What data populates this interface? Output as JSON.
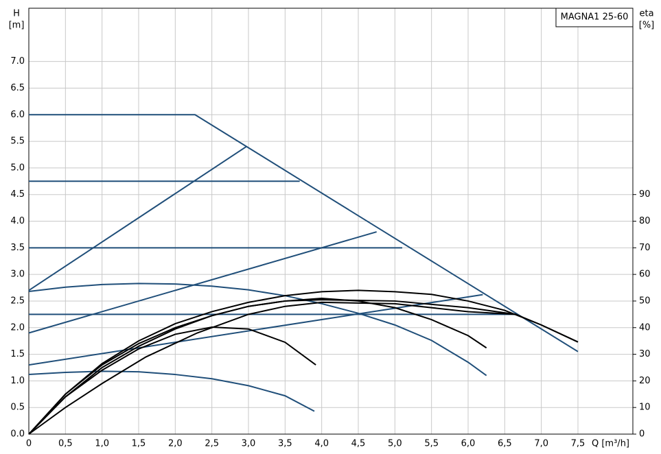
{
  "chart_data": {
    "type": "line",
    "title": "MAGNA1 25-60",
    "y_label": "H",
    "y_unit": "[m]",
    "y2_label": "eta",
    "y2_unit": "[%]",
    "x_label": "Q [m³/h]",
    "xlim": [
      0,
      8.25
    ],
    "ylim": [
      0,
      8
    ],
    "y2lim": [
      0,
      160
    ],
    "grid": true,
    "xticks": [
      0,
      {
        "value": 0.5,
        "label": "0,5"
      },
      {
        "value": 1,
        "label": "1,0"
      },
      {
        "value": 1.5,
        "label": "1,5"
      },
      {
        "value": 2,
        "label": "2,0"
      },
      {
        "value": 2.5,
        "label": "2,5"
      },
      {
        "value": 3,
        "label": "3,0"
      },
      {
        "value": 3.5,
        "label": "3,5"
      },
      {
        "value": 4,
        "label": "4,0"
      },
      {
        "value": 4.5,
        "label": "4,5"
      },
      {
        "value": 5,
        "label": "5,0"
      },
      {
        "value": 5.5,
        "label": "5,5"
      },
      {
        "value": 6,
        "label": "6,0"
      },
      {
        "value": 6.5,
        "label": "6,5"
      },
      {
        "value": 7,
        "label": "7,0"
      },
      {
        "value": 7.5,
        "label": "7,5"
      }
    ],
    "yticks": [
      {
        "value": 0,
        "label": "0.0"
      },
      0.5,
      {
        "value": 1,
        "label": "1.0"
      },
      1.5,
      {
        "value": 2,
        "label": "2.0"
      },
      2.5,
      {
        "value": 3,
        "label": "3.0"
      },
      3.5,
      {
        "value": 4,
        "label": "4.0"
      },
      4.5,
      {
        "value": 5,
        "label": "5.0"
      },
      5.5,
      {
        "value": 6,
        "label": "6.0"
      },
      6.5,
      {
        "value": 7,
        "label": "7.0"
      }
    ],
    "y2ticks": [
      0,
      10,
      20,
      30,
      40,
      50,
      60,
      70,
      80,
      90
    ],
    "series": [
      {
        "color": "#1f4e79",
        "x": [
          0,
          2.27,
          7.5
        ],
        "values": [
          6.0,
          6.0,
          1.55
        ]
      },
      {
        "color": "#1f4e79",
        "x": [
          0,
          3.7
        ],
        "values": [
          4.75,
          4.75
        ]
      },
      {
        "color": "#1f4e79",
        "x": [
          0,
          5.1
        ],
        "values": [
          3.5,
          3.5
        ]
      },
      {
        "color": "#1f4e79",
        "x": [
          0,
          6.65
        ],
        "values": [
          2.25,
          2.25
        ]
      },
      {
        "color": "#1f4e79",
        "x": [
          0,
          2.97
        ],
        "values": [
          2.7,
          5.4
        ]
      },
      {
        "color": "#1f4e79",
        "x": [
          0,
          4.75
        ],
        "values": [
          1.9,
          3.8
        ]
      },
      {
        "color": "#1f4e79",
        "x": [
          0,
          6.2
        ],
        "values": [
          1.3,
          2.62
        ]
      },
      {
        "color": "#1f4e79",
        "x": [
          0,
          0.5,
          1,
          1.5,
          2,
          2.5,
          3,
          3.5,
          4,
          4.5,
          5,
          5.5,
          6,
          6.25
        ],
        "values": [
          2.68,
          2.76,
          2.81,
          2.83,
          2.82,
          2.78,
          2.71,
          2.6,
          2.45,
          2.27,
          2.05,
          1.76,
          1.35,
          1.1
        ]
      },
      {
        "color": "#1f4e79",
        "x": [
          0,
          0.5,
          1,
          1.5,
          2,
          2.5,
          3,
          3.5,
          3.9
        ],
        "values": [
          1.12,
          1.16,
          1.18,
          1.17,
          1.12,
          1.04,
          0.91,
          0.72,
          0.43
        ]
      },
      {
        "color": "#000000",
        "axis": "y2",
        "x": [
          0,
          0.5,
          1,
          1.5,
          2,
          2.5,
          3,
          3.5,
          3.92
        ],
        "values": [
          0,
          14,
          24,
          32,
          37.5,
          40.2,
          39.5,
          34.5,
          26
        ]
      },
      {
        "color": "#000000",
        "axis": "y2",
        "x": [
          0,
          0.5,
          1,
          1.6,
          2.3,
          3,
          3.5,
          4,
          5,
          6,
          6.65
        ],
        "values": [
          0,
          10,
          19,
          29,
          38,
          45,
          48,
          49.5,
          49,
          46,
          45
        ]
      },
      {
        "color": "#000000",
        "axis": "y2",
        "x": [
          0,
          0.5,
          1,
          1.5,
          2,
          2.5,
          3,
          3.5,
          4,
          4.5,
          5,
          5.5,
          6,
          6.25
        ],
        "values": [
          0,
          15,
          26,
          34,
          40,
          44.5,
          48,
          50,
          51,
          50,
          47.5,
          43,
          37,
          32.4
        ]
      },
      {
        "color": "#000000",
        "axis": "y2",
        "x": [
          0,
          0.5,
          1,
          1.5,
          2,
          2.5,
          3,
          3.5,
          4,
          4.5,
          5,
          5.5,
          6,
          6.5,
          7,
          7.5
        ],
        "values": [
          0,
          15,
          26.5,
          35,
          41.5,
          46,
          49.5,
          52,
          53.5,
          54,
          53.5,
          52.5,
          50,
          46.5,
          41,
          34.6
        ]
      },
      {
        "color": "#000000",
        "axis": "y2",
        "x": [
          0,
          0.5,
          1,
          1.5,
          2,
          2.5,
          3,
          3.5,
          4,
          5,
          6,
          6.65,
          7,
          7.5
        ],
        "values": [
          0,
          14,
          25,
          33,
          39.5,
          44.5,
          48,
          50,
          50.5,
          50,
          47.5,
          45,
          41,
          34.6
        ]
      }
    ]
  }
}
